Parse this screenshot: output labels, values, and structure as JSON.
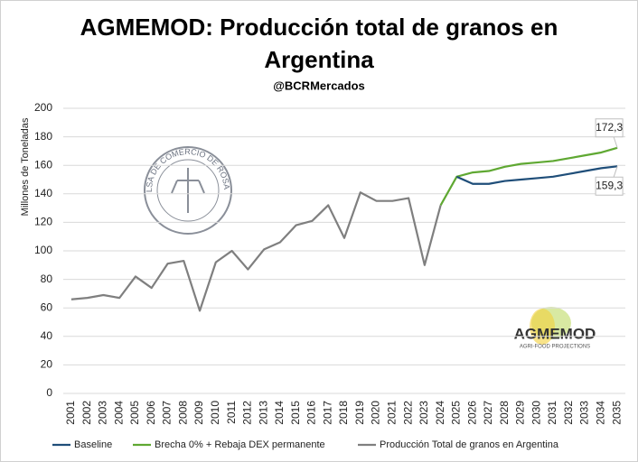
{
  "chart_data": {
    "type": "line",
    "title": [
      "AGMEMOD: Producción total de granos en",
      "Argentina"
    ],
    "subtitle": "@BCRMercados",
    "ylabel": "Millones de Toneladas",
    "categories": [
      "2001",
      "2002",
      "2003",
      "2004",
      "2005",
      "2006",
      "2007",
      "2008",
      "2009",
      "2010",
      "2011",
      "2012",
      "2013",
      "2014",
      "2015",
      "2016",
      "2017",
      "2018",
      "2019",
      "2020",
      "2021",
      "2022",
      "2023",
      "2024",
      "2025",
      "2026",
      "2027",
      "2028",
      "2029",
      "2030",
      "2031",
      "2032",
      "2033",
      "2034",
      "2035"
    ],
    "series": [
      {
        "name": "Baseline",
        "color": "#1f4e79",
        "values": [
          null,
          null,
          null,
          null,
          null,
          null,
          null,
          null,
          null,
          null,
          null,
          null,
          null,
          null,
          null,
          null,
          null,
          null,
          null,
          null,
          null,
          null,
          null,
          null,
          152,
          147,
          147,
          149,
          150,
          151,
          152,
          154,
          156,
          158,
          159.3
        ],
        "value_labels": [
          null,
          null,
          null,
          null,
          null,
          null,
          null,
          null,
          null,
          null,
          null,
          null,
          null,
          null,
          null,
          null,
          null,
          null,
          null,
          null,
          null,
          null,
          null,
          null,
          null,
          null,
          null,
          null,
          null,
          null,
          null,
          null,
          null,
          null,
          "159,3"
        ]
      },
      {
        "name": "Brecha 0% + Rebaja DEX permanente",
        "color": "#5fa832",
        "values": [
          null,
          null,
          null,
          null,
          null,
          null,
          null,
          null,
          null,
          null,
          null,
          null,
          null,
          null,
          null,
          null,
          null,
          null,
          null,
          null,
          null,
          null,
          null,
          132,
          152,
          155,
          156,
          159,
          161,
          162,
          163,
          165,
          167,
          169,
          172.3
        ],
        "value_labels": [
          null,
          null,
          null,
          null,
          null,
          null,
          null,
          null,
          null,
          null,
          null,
          null,
          null,
          null,
          null,
          null,
          null,
          null,
          null,
          null,
          null,
          null,
          null,
          null,
          null,
          null,
          null,
          null,
          null,
          null,
          null,
          null,
          null,
          null,
          "172,3"
        ]
      },
      {
        "name": "Producción Total de granos en Argentina",
        "color": "#7f7f7f",
        "values": [
          66,
          67,
          69,
          67,
          82,
          74,
          91,
          93,
          58,
          92,
          100,
          87,
          101,
          106,
          118,
          121,
          132,
          109,
          141,
          135,
          135,
          137,
          90,
          132,
          null,
          null,
          null,
          null,
          null,
          null,
          null,
          null,
          null,
          null,
          null
        ]
      }
    ],
    "ylim": [
      0,
      200
    ],
    "yticks": [
      0,
      20,
      40,
      60,
      80,
      100,
      120,
      140,
      160,
      180,
      200
    ],
    "grid": true,
    "legend": "bottom"
  },
  "logos": {
    "seal": "BOLSA DE COMERCIO DE ROSARIO",
    "agmemod": "AGMEMOD",
    "agmemod_tagline": "AGRI-FOOD PROJECTIONS"
  }
}
